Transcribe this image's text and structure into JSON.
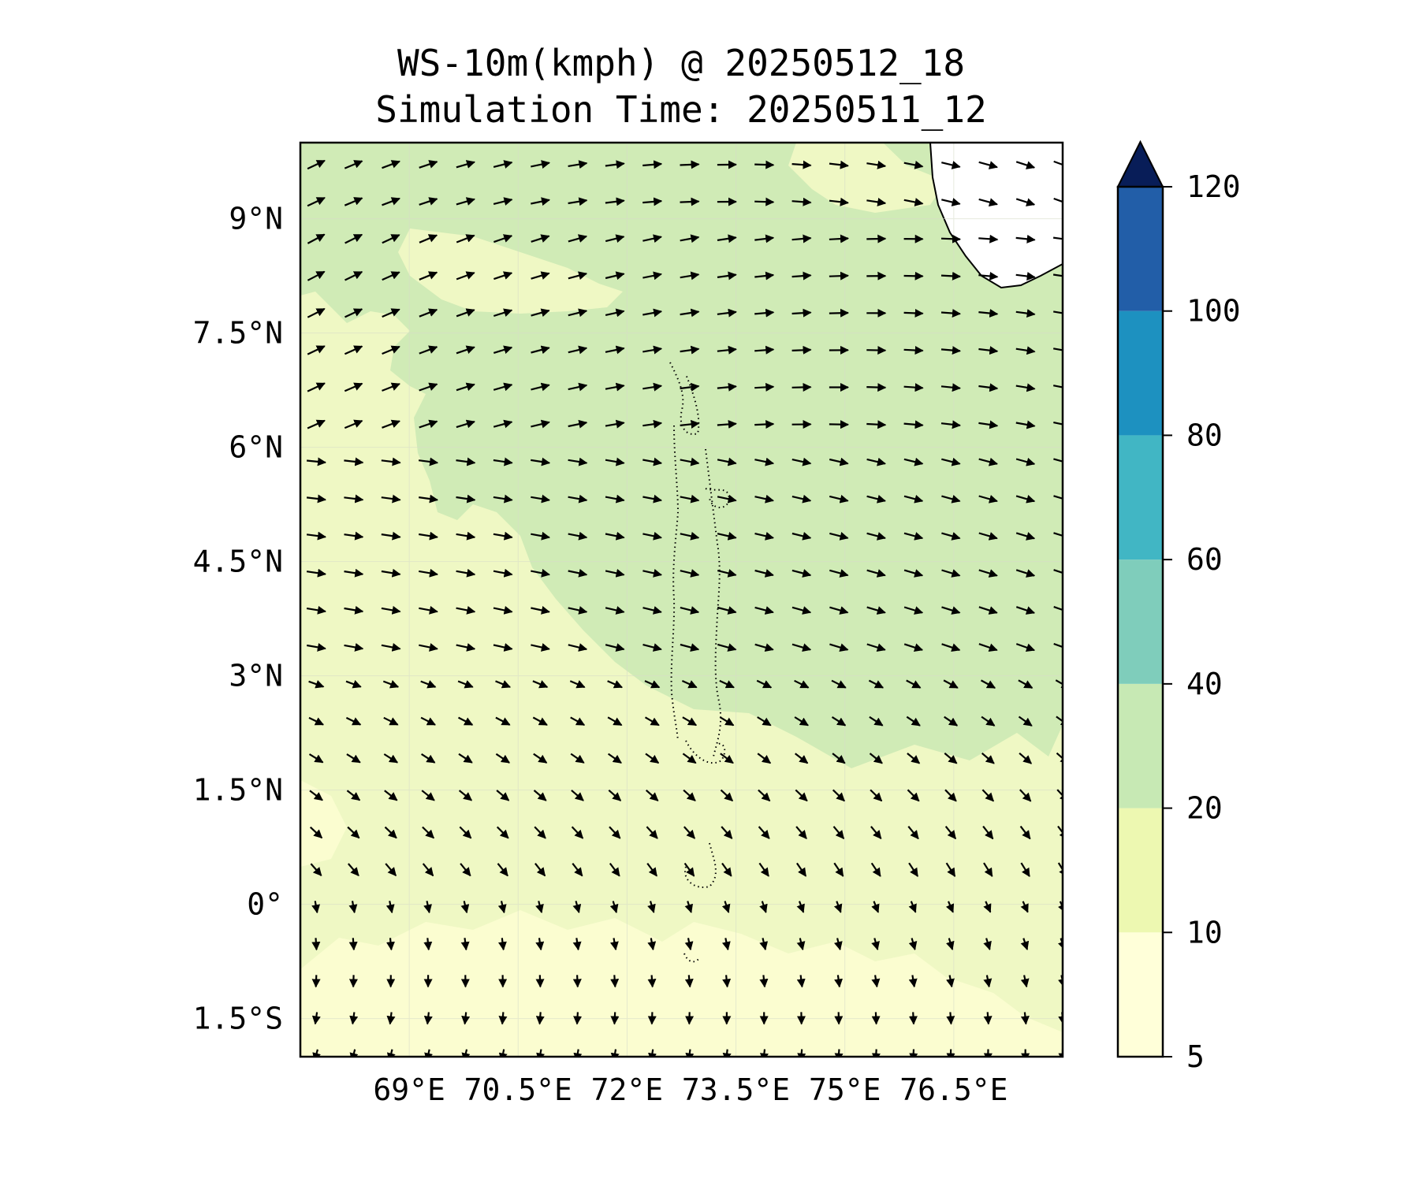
{
  "title": {
    "line1": "WS-10m(kmph) @ 20250512_18",
    "line2": "Simulation Time: 20250511_12"
  },
  "map": {
    "lon_range": [
      67.5,
      78.0
    ],
    "lat_range": [
      -2.0,
      10.0
    ],
    "lon_tick_labels": [
      {
        "lon": 69.0,
        "label": "69°E"
      },
      {
        "lon": 70.5,
        "label": "70.5°E"
      },
      {
        "lon": 72.0,
        "label": "72°E"
      },
      {
        "lon": 73.5,
        "label": "73.5°E"
      },
      {
        "lon": 75.0,
        "label": "75°E"
      },
      {
        "lon": 76.5,
        "label": "76.5°E"
      }
    ],
    "lat_tick_labels": [
      {
        "lat": 9.0,
        "label": "9°N"
      },
      {
        "lat": 7.5,
        "label": "7.5°N"
      },
      {
        "lat": 6.0,
        "label": "6°N"
      },
      {
        "lat": 4.5,
        "label": "4.5°N"
      },
      {
        "lat": 3.0,
        "label": "3°N"
      },
      {
        "lat": 1.5,
        "label": "1.5°N"
      },
      {
        "lat": 0.0,
        "label": "0°"
      },
      {
        "lat": -1.5,
        "label": "1.5°S"
      }
    ],
    "gridlines": true,
    "wind_vectors": true,
    "coastline_feature": "southwest-india",
    "island_feature": "maldives-atolls"
  },
  "colorbar": {
    "levels": [
      5,
      10,
      20,
      40,
      60,
      80,
      100,
      120
    ],
    "tick_labels": [
      "5",
      "10",
      "20",
      "40",
      "60",
      "80",
      "100",
      "120"
    ],
    "colors": [
      "#ffffd9",
      "#edf8b1",
      "#c7e9b4",
      "#7fcdbb",
      "#41b6c4",
      "#1d91c0",
      "#225ea8",
      "#0c2c84"
    ],
    "extend": "max",
    "extend_color": "#081d58"
  },
  "field_colors": {
    "band_5_10": "#fbfdd0",
    "band_10_20": "#eff8c4",
    "band_20_40": "#d0ebb6",
    "land": "#ffffff"
  }
}
